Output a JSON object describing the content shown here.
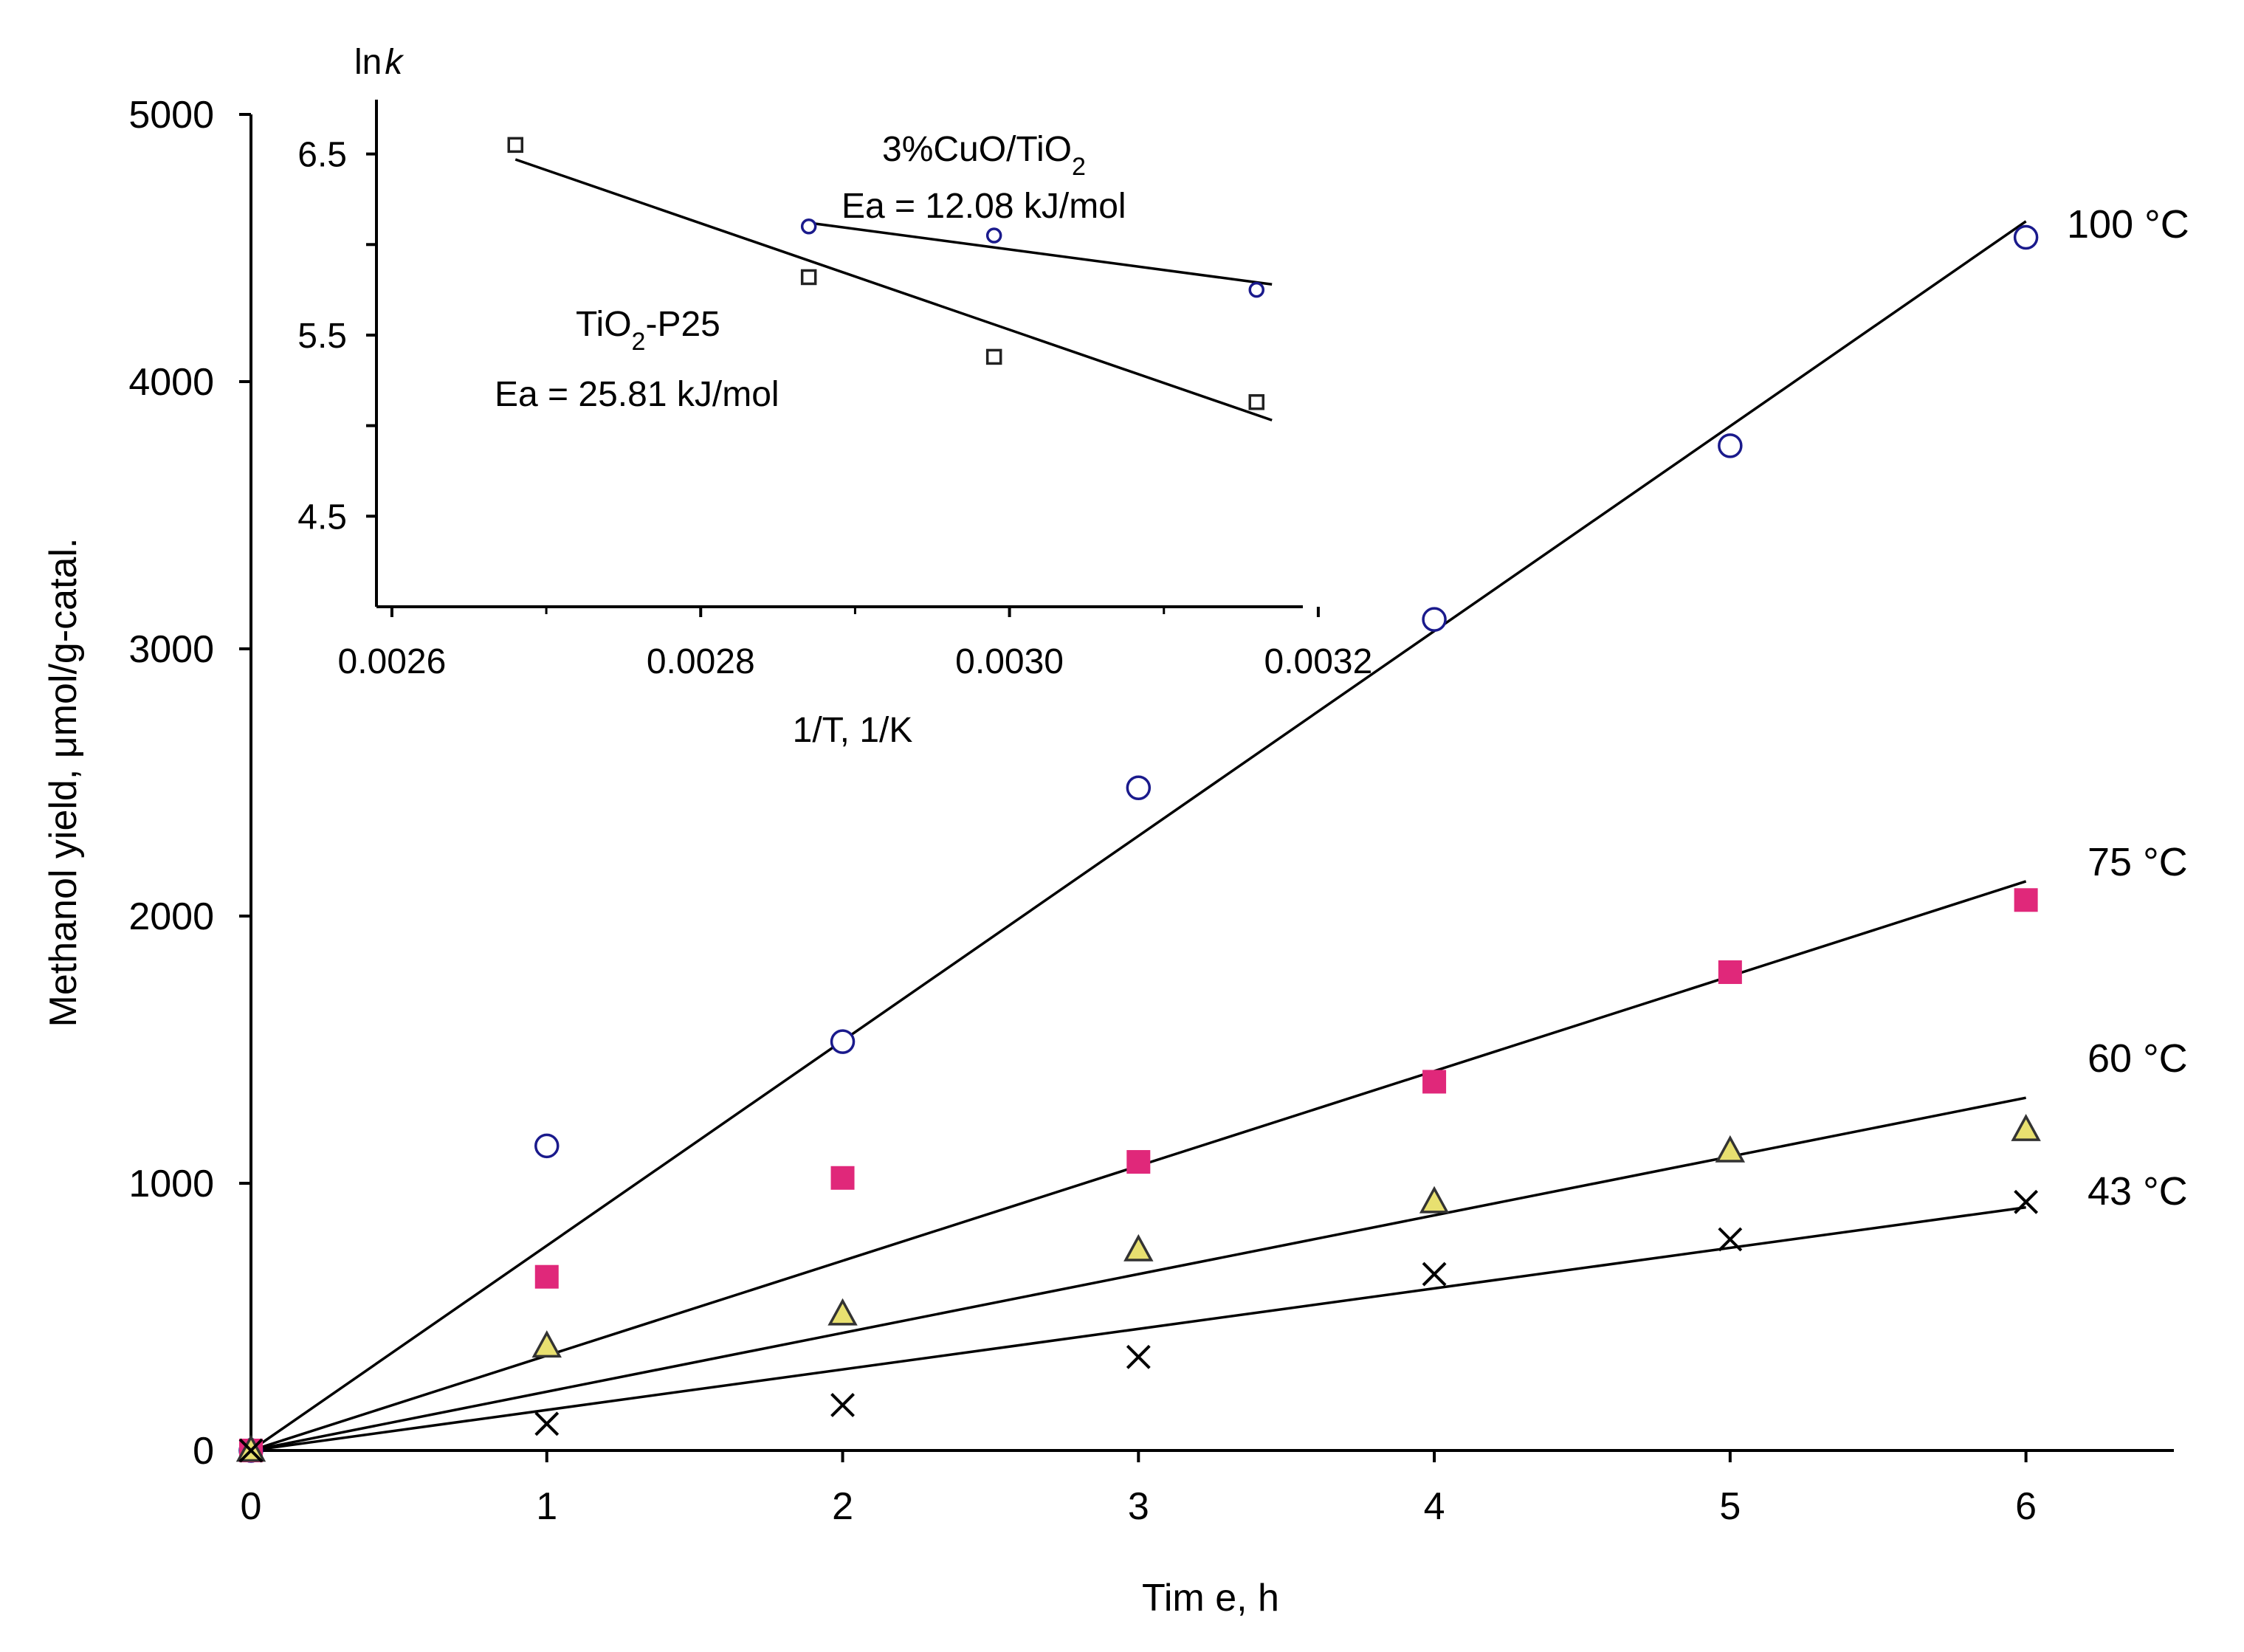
{
  "chart_data": [
    {
      "type": "scatter",
      "title": "",
      "xlabel": "Tim e, h",
      "ylabel": "Methanol yield, μmol/g-catal.",
      "xlim": [
        0,
        6.5
      ],
      "ylim": [
        0,
        5000
      ],
      "xticks": [
        "0",
        "1",
        "2",
        "3",
        "4",
        "5",
        "6"
      ],
      "yticks": [
        "0",
        "1000",
        "2000",
        "3000",
        "4000",
        "5000"
      ],
      "colors": {
        "axis": "#000000",
        "circle": "#1a1a8c",
        "square": "#e0287a",
        "triangle_fill": "#e8e070",
        "triangle_stroke": "#333333",
        "cross": "#000000",
        "fit": "#000000"
      },
      "series": [
        {
          "name": "100 °C",
          "marker": "circle",
          "x": [
            0,
            1,
            2,
            3,
            4,
            5,
            6
          ],
          "y": [
            0,
            1140,
            1530,
            2480,
            3110,
            3760,
            4540
          ],
          "fit_end": 4600
        },
        {
          "name": "75 °C",
          "marker": "square",
          "x": [
            0,
            1,
            2,
            3,
            4,
            5,
            6
          ],
          "y": [
            0,
            650,
            1020,
            1080,
            1380,
            1790,
            2060
          ],
          "fit_end": 2130
        },
        {
          "name": "60 °C",
          "marker": "triangle",
          "x": [
            0,
            1,
            2,
            3,
            4,
            5,
            6
          ],
          "y": [
            0,
            390,
            510,
            750,
            930,
            1120,
            1200
          ],
          "fit_end": 1320
        },
        {
          "name": "43 °C",
          "marker": "cross",
          "x": [
            0,
            1,
            2,
            3,
            4,
            5,
            6
          ],
          "y": [
            0,
            100,
            170,
            350,
            660,
            790,
            930
          ],
          "fit_end": 910
        }
      ]
    },
    {
      "type": "scatter",
      "title": "inset",
      "xlabel": "1/T, 1/K",
      "ylabel": "ln k",
      "ylabel_main": "ln",
      "ylabel_italic": "k",
      "xlim": [
        0.00259,
        0.00319
      ],
      "ylim": [
        4.0,
        6.8
      ],
      "xticks": [
        "0.0026",
        "0.0028",
        "0.0030",
        "0.0032"
      ],
      "yticks": [
        "4.5",
        "5.5",
        "6.5"
      ],
      "series": [
        {
          "name": "TiO2-P25",
          "label_main": "TiO",
          "label_sub": "2",
          "label_rest": "-P25",
          "ea_label": "Ea = 25.81 kJ/mol",
          "marker": "square",
          "x": [
            0.00268,
            0.00287,
            0.00299,
            0.00316
          ],
          "y": [
            6.55,
            5.82,
            5.38,
            5.13
          ],
          "fit": {
            "x": [
              0.00268,
              0.00317
            ],
            "y": [
              6.47,
              5.03
            ]
          }
        },
        {
          "name": "3%CuO/TiO2",
          "label_main": "3%CuO/TiO",
          "label_sub": "2",
          "label_rest": "",
          "ea_label": "Ea = 12.08 kJ/mol",
          "marker": "circle",
          "x": [
            0.00287,
            0.00299,
            0.00316
          ],
          "y": [
            6.1,
            6.05,
            5.75
          ],
          "fit": {
            "x": [
              0.00287,
              0.00317
            ],
            "y": [
              6.12,
              5.78
            ]
          }
        }
      ]
    }
  ]
}
